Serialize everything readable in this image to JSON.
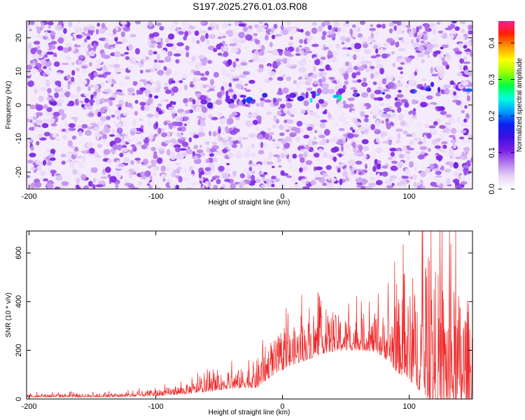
{
  "title": "S197.2025.276.01.03.R08",
  "chart_data": [
    {
      "type": "heatmap",
      "name": "spectrogram",
      "xlabel": "Height of straight line (km)",
      "ylabel": "Frequency (Hz)",
      "xlim": [
        -202,
        150
      ],
      "ylim": [
        -25,
        25
      ],
      "xticks": [
        -200,
        -100,
        0,
        100
      ],
      "xtick_labels": [
        "-200",
        "-100",
        "0",
        "100"
      ],
      "yticks": [
        -20,
        -10,
        0,
        10,
        20
      ],
      "ytick_labels": [
        "-20",
        "-10",
        "0",
        "10",
        "20"
      ],
      "ridge": {
        "description_points_km": [
          -200,
          -100,
          -50,
          0,
          25,
          40,
          60,
          100,
          125,
          150
        ],
        "frequency_hz": [
          0,
          2,
          1,
          2,
          2,
          2,
          3,
          4,
          5,
          4
        ]
      },
      "colorbar": {
        "label": "Normalized spectral amplitude",
        "range": [
          0,
          0.46
        ],
        "ticks": [
          0.0,
          0.1,
          0.2,
          0.3,
          0.4
        ],
        "tick_labels": [
          "0.0",
          "0.1",
          "0.2",
          "0.3",
          "0.4"
        ],
        "colors": [
          "#ffffff",
          "#e6d2f7",
          "#b47aeb",
          "#7a1ee6",
          "#3e10e0",
          "#0a20f0",
          "#00a0ff",
          "#00ffe0",
          "#00ff40",
          "#9aff00",
          "#ffff00",
          "#ff9a00",
          "#ff2000",
          "#ff1a9a"
        ]
      }
    },
    {
      "type": "line",
      "name": "snr",
      "xlabel": "Height of straight line (km)",
      "ylabel": "SNR (10 * v/v)",
      "xlim": [
        -202,
        150
      ],
      "ylim": [
        0,
        690
      ],
      "xticks": [
        -200,
        -100,
        0,
        100
      ],
      "xtick_labels": [
        "-200",
        "-100",
        "0",
        "100"
      ],
      "yticks": [
        0,
        200,
        400,
        600
      ],
      "ytick_labels": [
        "0",
        "200",
        "400",
        "600"
      ],
      "color": "#ee2a2a",
      "envelope": {
        "x": [
          -202,
          -150,
          -120,
          -100,
          -80,
          -60,
          -45,
          -30,
          -20,
          -15,
          -10,
          0,
          10,
          20,
          30,
          40,
          50,
          60,
          70,
          80,
          90,
          100,
          110,
          120,
          130,
          140,
          150
        ],
        "base": [
          12,
          12,
          14,
          20,
          30,
          45,
          60,
          70,
          80,
          110,
          130,
          160,
          190,
          210,
          230,
          240,
          240,
          240,
          235,
          225,
          200,
          180,
          160,
          140,
          120,
          110,
          100
        ],
        "spread": [
          12,
          12,
          14,
          22,
          30,
          45,
          55,
          70,
          100,
          120,
          120,
          120,
          130,
          140,
          130,
          130,
          120,
          110,
          110,
          150,
          250,
          300,
          380,
          480,
          420,
          400,
          350
        ]
      }
    }
  ]
}
